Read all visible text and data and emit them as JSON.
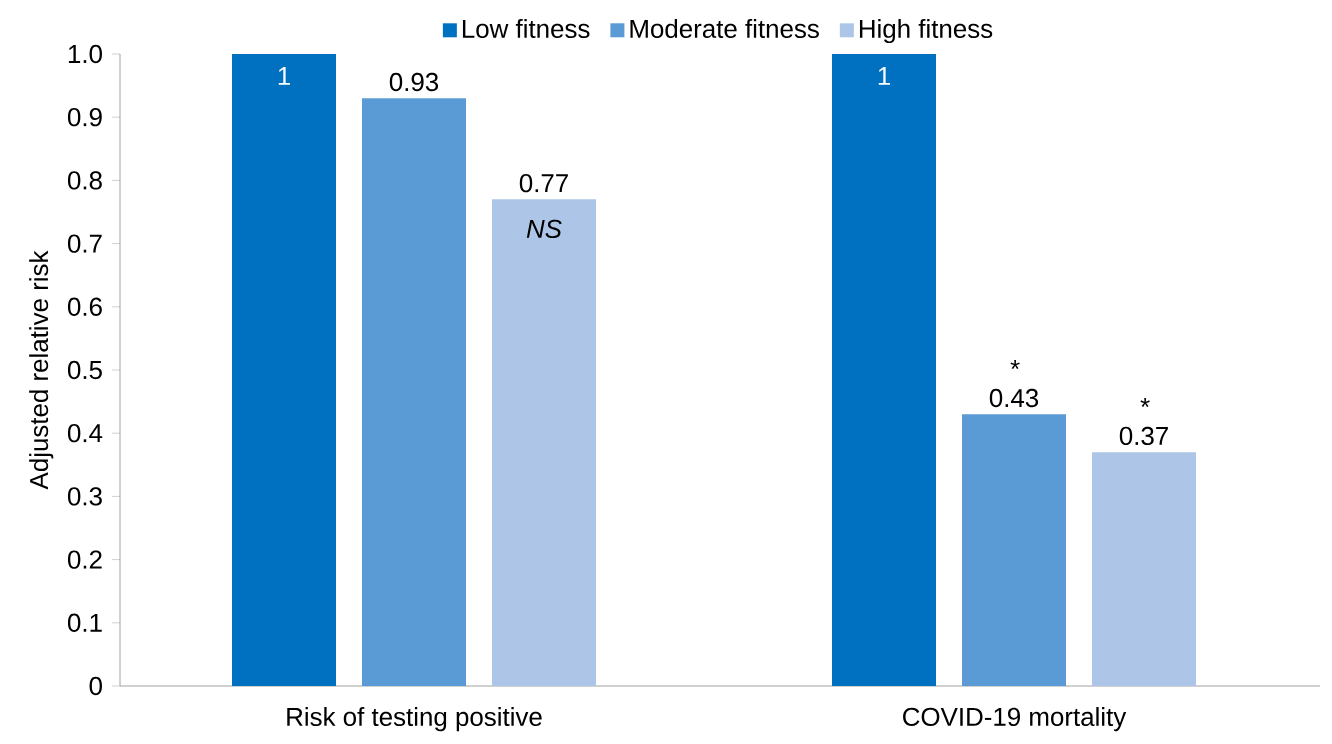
{
  "chart_data": {
    "type": "bar",
    "ylabel": "Adjusted relative risk",
    "categories": [
      "Risk of testing positive",
      "COVID-19 mortality"
    ],
    "series": [
      {
        "name": "Low fitness",
        "color": "#0070c0",
        "values": [
          1,
          1
        ],
        "value_labels": [
          "1",
          "1"
        ]
      },
      {
        "name": "Moderate fitness",
        "color": "#5b9bd5",
        "values": [
          0.93,
          0.43
        ],
        "value_labels": [
          "0.93",
          "0.43"
        ]
      },
      {
        "name": "High fitness",
        "color": "#adc6e8",
        "values": [
          0.77,
          0.37
        ],
        "value_labels": [
          "0.77",
          "0.37"
        ]
      }
    ],
    "ylim": [
      0,
      1
    ],
    "yticks": [
      0,
      0.1,
      0.2,
      0.3,
      0.4,
      0.5,
      0.6,
      0.7,
      0.8,
      0.9,
      {
        "value": 1,
        "label": "1.0"
      }
    ],
    "annotations": [
      "NS",
      "*",
      "*"
    ],
    "legend": "top",
    "grid": false
  }
}
